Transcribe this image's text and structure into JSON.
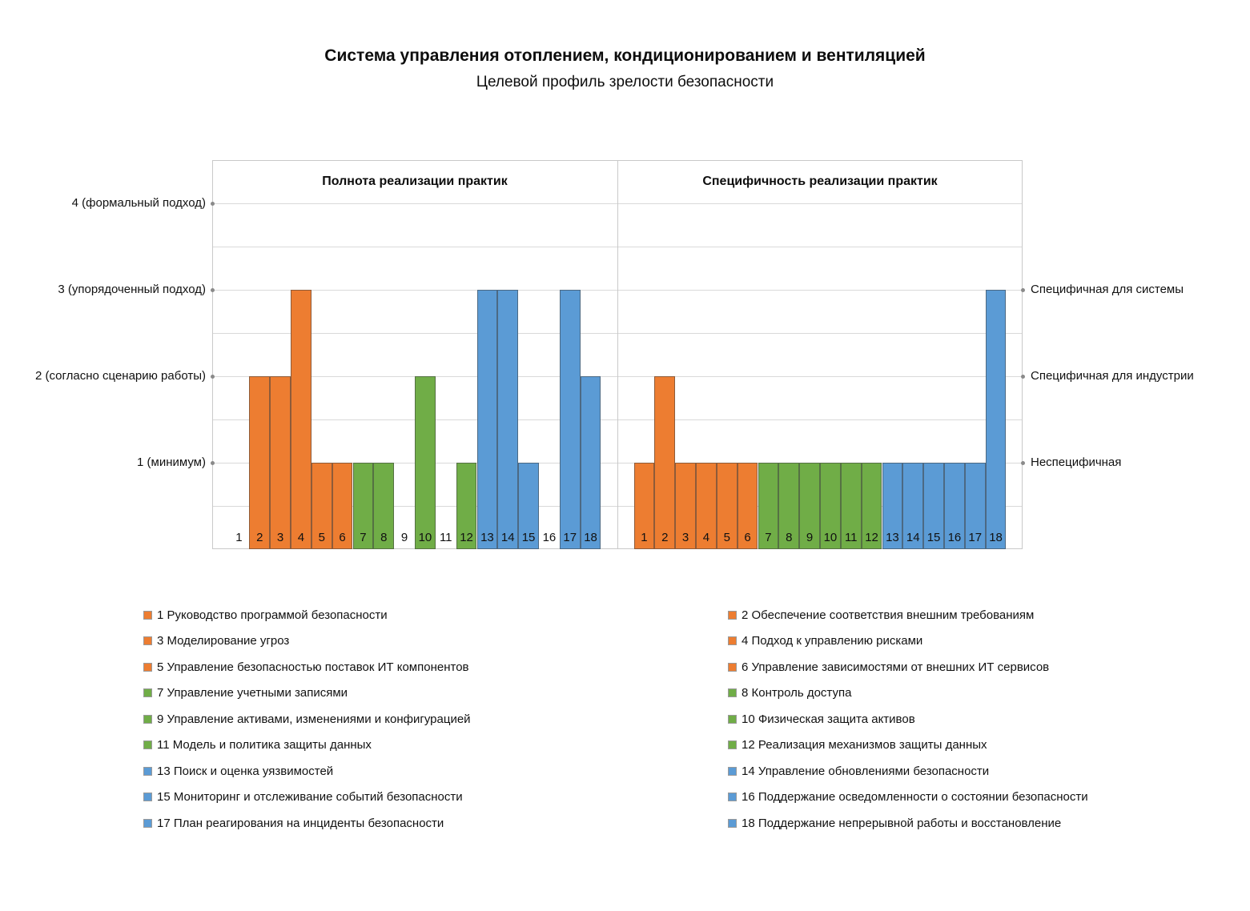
{
  "title": "Система управления отоплением, кондиционированием и вентиляцией",
  "subtitle": "Целевой профиль зрелости безопасности",
  "chart_data": {
    "type": "bar",
    "ylim": [
      0,
      4.5
    ],
    "grid_step": 0.5,
    "grid_on": true,
    "categories": [
      "1",
      "2",
      "3",
      "4",
      "5",
      "6",
      "7",
      "8",
      "9",
      "10",
      "11",
      "12",
      "13",
      "14",
      "15",
      "16",
      "17",
      "18"
    ],
    "panels": [
      {
        "header": "Полнота реализации практик",
        "values": [
          0,
          2,
          2,
          3,
          1,
          1,
          1,
          1,
          0,
          2,
          0,
          1,
          3,
          3,
          1,
          0,
          3,
          2
        ]
      },
      {
        "header": "Специфичность реализации практик",
        "values": [
          1,
          2,
          1,
          1,
          1,
          1,
          1,
          1,
          1,
          1,
          1,
          1,
          1,
          1,
          1,
          1,
          1,
          3
        ]
      }
    ],
    "y_axis_left": [
      {
        "value": 4,
        "label": "4 (формальный подход)"
      },
      {
        "value": 3,
        "label": "3 (упорядоченный подход)"
      },
      {
        "value": 2,
        "label": "2 (согласно сценарию работы)"
      },
      {
        "value": 1,
        "label": "1 (минимум)"
      }
    ],
    "y_axis_right": [
      {
        "value": 3,
        "label": "Специфичная для системы"
      },
      {
        "value": 2,
        "label": "Специфичная для индустрии"
      },
      {
        "value": 1,
        "label": "Неспецифичная"
      }
    ],
    "color_groups": [
      {
        "from": 1,
        "to": 6,
        "color": "#ED7D31"
      },
      {
        "from": 7,
        "to": 12,
        "color": "#70AD47"
      },
      {
        "from": 13,
        "to": 18,
        "color": "#5B9BD5"
      }
    ],
    "legend": [
      {
        "num": "1",
        "label": "Руководство программой безопасности"
      },
      {
        "num": "2",
        "label": "Обеспечение соответствия внешним требованиям"
      },
      {
        "num": "3",
        "label": "Моделирование угроз"
      },
      {
        "num": "4",
        "label": "Подход к управлению рисками"
      },
      {
        "num": "5",
        "label": "Управление безопасностью поставок ИТ компонентов"
      },
      {
        "num": "6",
        "label": "Управление зависимостями от внешних ИТ сервисов"
      },
      {
        "num": "7",
        "label": "Управление учетными записями"
      },
      {
        "num": "8",
        "label": "Контроль доступа"
      },
      {
        "num": "9",
        "label": "Управление активами, изменениями и конфигурацией"
      },
      {
        "num": "10",
        "label": "Физическая защита активов"
      },
      {
        "num": "11",
        "label": "Модель и политика защиты данных"
      },
      {
        "num": "12",
        "label": "Реализация механизмов защиты данных"
      },
      {
        "num": "13",
        "label": "Поиск и оценка уязвимостей"
      },
      {
        "num": "14",
        "label": "Управление обновлениями безопасности"
      },
      {
        "num": "15",
        "label": "Мониторинг и отслеживание событий безопасности"
      },
      {
        "num": "16",
        "label": "Поддержание осведомленности о состоянии безопасности"
      },
      {
        "num": "17",
        "label": "План реагирования на инциденты безопасности"
      },
      {
        "num": "18",
        "label": "Поддержание непрерывной работы и восстановление"
      }
    ]
  },
  "colors": {
    "grid": "#D9D9D9",
    "plot_border": "#C9C9C9",
    "tick_dot": "#8A8A8A",
    "bar_outline": "rgba(64,64,64,0.55)"
  }
}
